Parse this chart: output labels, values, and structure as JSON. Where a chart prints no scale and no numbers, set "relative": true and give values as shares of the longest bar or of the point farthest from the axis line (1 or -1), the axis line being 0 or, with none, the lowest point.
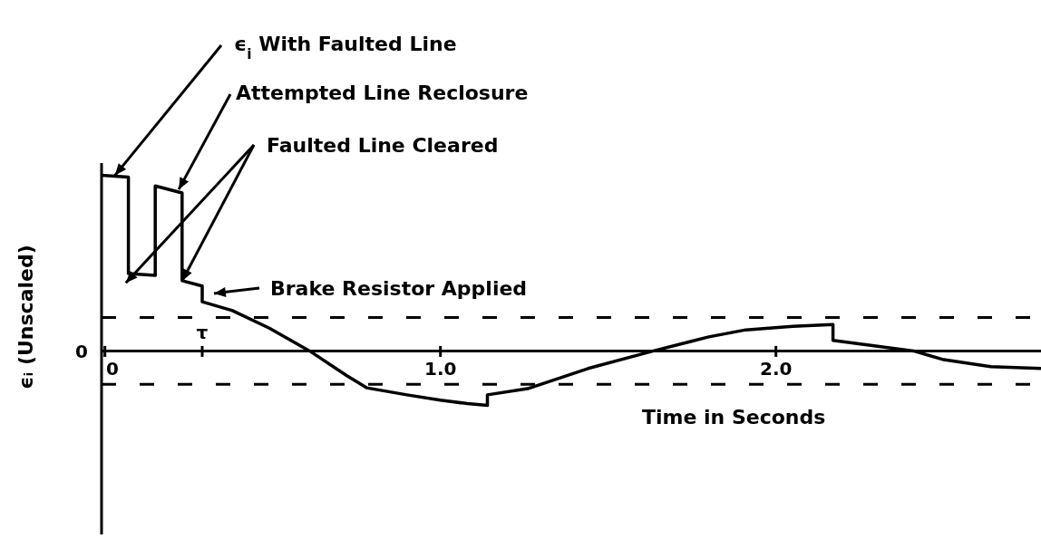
{
  "chart_data": {
    "type": "line",
    "relative": true,
    "xlabel": "Time in Seconds",
    "ylabel": "ϵᵢ (Unscaled)",
    "xlim": [
      -0.01,
      2.79
    ],
    "xticks": [
      {
        "value": 0,
        "label": "0"
      },
      {
        "value": 0.29,
        "label": null
      },
      {
        "value": 1,
        "label": "1.0"
      },
      {
        "value": 2,
        "label": "2.0"
      }
    ],
    "x": [
      -0.01,
      0.07,
      0.07,
      0.15,
      0.15,
      0.23,
      0.23,
      0.29,
      0.29,
      0.38,
      0.49,
      0.61,
      0.72,
      0.78,
      0.9,
      1.0,
      1.08,
      1.14,
      1.14,
      1.26,
      1.44,
      1.635,
      1.8,
      1.91,
      2.05,
      2.17,
      2.17,
      2.41,
      2.5,
      2.64,
      2.79
    ],
    "series": [
      {
        "color": "#000000",
        "values": [
          1.0,
          0.99,
          0.44,
          0.43,
          0.94,
          0.9,
          0.4,
          0.37,
          0.28,
          0.23,
          0.13,
          0,
          -0.14,
          -0.21,
          -0.25,
          -0.28,
          -0.3,
          -0.31,
          -0.25,
          -0.215,
          -0.1,
          0,
          0.08,
          0.12,
          0.14,
          0.15,
          0.06,
          0,
          -0.05,
          -0.09,
          -0.1
        ]
      }
    ],
    "marker": "none",
    "line_style": "solid",
    "ref_lines": [
      {
        "axis": "y",
        "value": 0.19,
        "line_style": "dashed",
        "color": "#000000"
      },
      {
        "axis": "y",
        "value": -0.19,
        "line_style": "dashed",
        "color": "#000000"
      }
    ],
    "annotations": [
      "0",
      {
        "text": "ϵ$_{i}$ With Faulted Line",
        "x": 0.03,
        "y": 1.0
      },
      {
        "text": "Attempted Line Reclosure",
        "x": 0.22,
        "y": 0.92
      },
      {
        "text": "Faulted Line Cleared",
        "x": 0.23,
        "y": 0.4
      },
      "Brake Resistor Applied",
      "τ"
    ]
  }
}
